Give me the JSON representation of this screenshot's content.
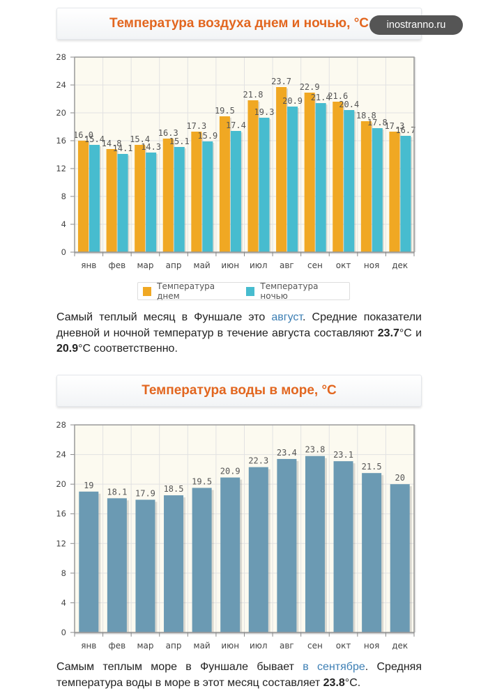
{
  "watermark": "inostranno.ru",
  "section1": {
    "title": "Температура воздуха днем и ночью, °C",
    "paragraph": {
      "t1": "Самый теплый месяц в Фуншале это ",
      "link": "август",
      "t2": ". Средние показатели дневной и ночной температур в течение августа составляют ",
      "v1": "23.7",
      "t3": "°C и ",
      "v2": "20.9",
      "t4": "°C соответственно."
    }
  },
  "section2": {
    "title": "Температура воды в море, °C",
    "paragraph": {
      "t1": "Самым теплым море в Фуншале бывает ",
      "link": "в сентябре",
      "t2": ". Средняя температура воды в море в этот месяц составляет ",
      "v1": "23.8",
      "t3": "°C."
    }
  },
  "colors": {
    "day": "#f0a823",
    "night": "#47bccf",
    "water": "#6b9ab3"
  },
  "chart_data": [
    {
      "type": "bar",
      "title": "Температура воздуха днем и ночью, °C",
      "categories": [
        "янв",
        "фев",
        "мар",
        "апр",
        "май",
        "июн",
        "июл",
        "авг",
        "сен",
        "окт",
        "ноя",
        "дек"
      ],
      "series": [
        {
          "name": "Температура днем",
          "values": [
            16.0,
            14.8,
            15.4,
            16.3,
            17.3,
            19.5,
            21.8,
            23.7,
            22.9,
            21.6,
            18.8,
            17.3
          ]
        },
        {
          "name": "Температура ночью",
          "values": [
            15.4,
            14.1,
            14.3,
            15.1,
            15.9,
            17.4,
            19.3,
            20.9,
            21.4,
            20.4,
            17.8,
            16.7
          ]
        }
      ],
      "value_labels": [
        [
          "16.0",
          "14.8",
          "15.4",
          "16.3",
          "17.3",
          "19.5",
          "21.8",
          "23.7",
          "22.9",
          "21.6",
          "18.8",
          "17.3"
        ],
        [
          "15.4",
          "14.1",
          "14.3",
          "15.1",
          "15.9",
          "17.4",
          "19.3",
          "20.9",
          "21.4",
          "20.4",
          "17.8",
          "16.7"
        ]
      ],
      "yticks": [
        0,
        4,
        8,
        12,
        16,
        20,
        24,
        28
      ],
      "ylim": [
        0,
        28
      ],
      "legend": "bottom",
      "grid": true
    },
    {
      "type": "bar",
      "title": "Температура воды в море, °C",
      "categories": [
        "янв",
        "фев",
        "мар",
        "апр",
        "май",
        "июн",
        "июл",
        "авг",
        "сен",
        "окт",
        "ноя",
        "дек"
      ],
      "values": [
        19,
        18.1,
        17.9,
        18.5,
        19.5,
        20.9,
        22.3,
        23.4,
        23.8,
        23.1,
        21.5,
        20
      ],
      "value_labels": [
        "19",
        "18.1",
        "17.9",
        "18.5",
        "19.5",
        "20.9",
        "22.3",
        "23.4",
        "23.8",
        "23.1",
        "21.5",
        "20"
      ],
      "yticks": [
        0,
        4,
        8,
        12,
        16,
        20,
        24,
        28
      ],
      "ylim": [
        0,
        28
      ],
      "grid": true
    }
  ]
}
